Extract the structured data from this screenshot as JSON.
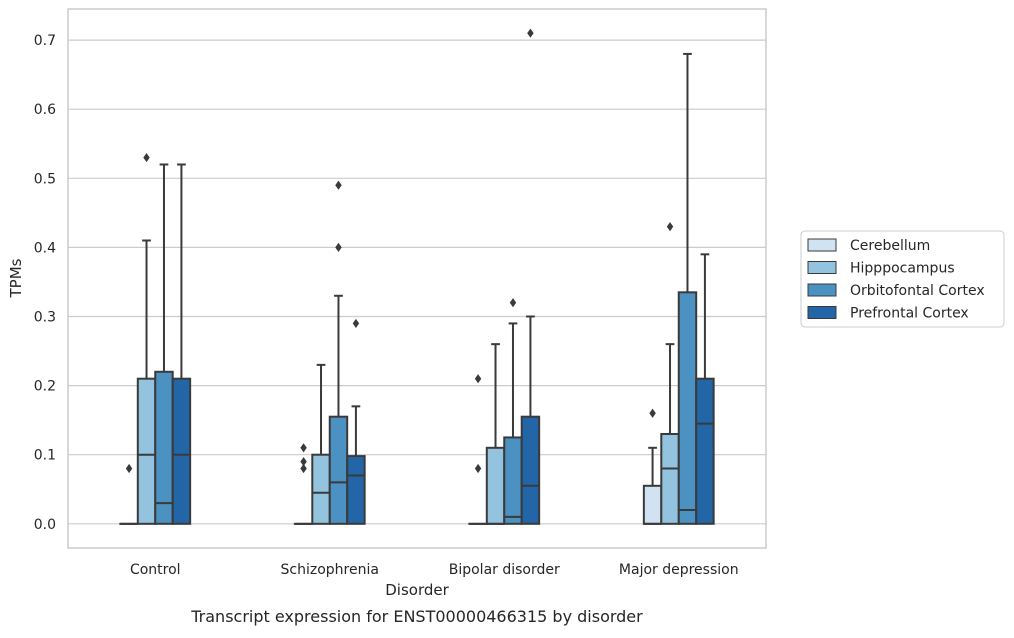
{
  "chart_data": {
    "type": "box",
    "title": "Transcript expression for ENST00000466315 by disorder",
    "xlabel": "Disorder",
    "ylabel": "TPMs",
    "ylim": [
      -0.035,
      0.745
    ],
    "yticks": [
      0.0,
      0.1,
      0.2,
      0.3,
      0.4,
      0.5,
      0.6,
      0.7
    ],
    "ytick_labels": [
      "0.0",
      "0.1",
      "0.2",
      "0.3",
      "0.4",
      "0.5",
      "0.6",
      "0.7"
    ],
    "categories": [
      "Control",
      "Schizophrenia",
      "Bipolar disorder",
      "Major depression"
    ],
    "grid": "horizontal",
    "legend_position": "right",
    "series": [
      {
        "name": "Cerebellum",
        "color": "#d1e2f2",
        "boxes": [
          {
            "min": 0,
            "q1": 0,
            "median": 0,
            "q3": 0,
            "max": 0,
            "outliers": [
              0.08
            ]
          },
          {
            "min": 0,
            "q1": 0,
            "median": 0,
            "q3": 0,
            "max": 0,
            "outliers": [
              0.08,
              0.09,
              0.11
            ]
          },
          {
            "min": 0,
            "q1": 0,
            "median": 0,
            "q3": 0,
            "max": 0,
            "outliers": [
              0.08,
              0.21
            ]
          },
          {
            "min": 0,
            "q1": 0,
            "median": 0,
            "q3": 0.055,
            "max": 0.11,
            "outliers": [
              0.16
            ]
          }
        ]
      },
      {
        "name": "Hipppocampus",
        "color": "#94c3df",
        "boxes": [
          {
            "min": 0,
            "q1": 0,
            "median": 0.1,
            "q3": 0.21,
            "max": 0.41,
            "outliers": [
              0.53
            ]
          },
          {
            "min": 0,
            "q1": 0,
            "median": 0.045,
            "q3": 0.1,
            "max": 0.23,
            "outliers": []
          },
          {
            "min": 0,
            "q1": 0,
            "median": 0,
            "q3": 0.11,
            "max": 0.26,
            "outliers": []
          },
          {
            "min": 0,
            "q1": 0,
            "median": 0.08,
            "q3": 0.13,
            "max": 0.26,
            "outliers": [
              0.43
            ]
          }
        ]
      },
      {
        "name": "Orbitofontal Cortex",
        "color": "#4b91c2",
        "boxes": [
          {
            "min": 0,
            "q1": 0,
            "median": 0.03,
            "q3": 0.22,
            "max": 0.52,
            "outliers": []
          },
          {
            "min": 0,
            "q1": 0,
            "median": 0.06,
            "q3": 0.155,
            "max": 0.33,
            "outliers": [
              0.4,
              0.49
            ]
          },
          {
            "min": 0,
            "q1": 0,
            "median": 0.01,
            "q3": 0.125,
            "max": 0.29,
            "outliers": [
              0.32
            ]
          },
          {
            "min": 0,
            "q1": 0,
            "median": 0.02,
            "q3": 0.335,
            "max": 0.68,
            "outliers": []
          }
        ]
      },
      {
        "name": "Prefrontal Cortex",
        "color": "#2266a7",
        "boxes": [
          {
            "min": 0,
            "q1": 0,
            "median": 0.1,
            "q3": 0.21,
            "max": 0.52,
            "outliers": []
          },
          {
            "min": 0,
            "q1": 0,
            "median": 0.07,
            "q3": 0.098,
            "max": 0.17,
            "outliers": [
              0.29
            ]
          },
          {
            "min": 0,
            "q1": 0,
            "median": 0.055,
            "q3": 0.155,
            "max": 0.3,
            "outliers": [
              0.71
            ]
          },
          {
            "min": 0,
            "q1": 0,
            "median": 0.145,
            "q3": 0.21,
            "max": 0.39,
            "outliers": []
          }
        ]
      }
    ]
  }
}
